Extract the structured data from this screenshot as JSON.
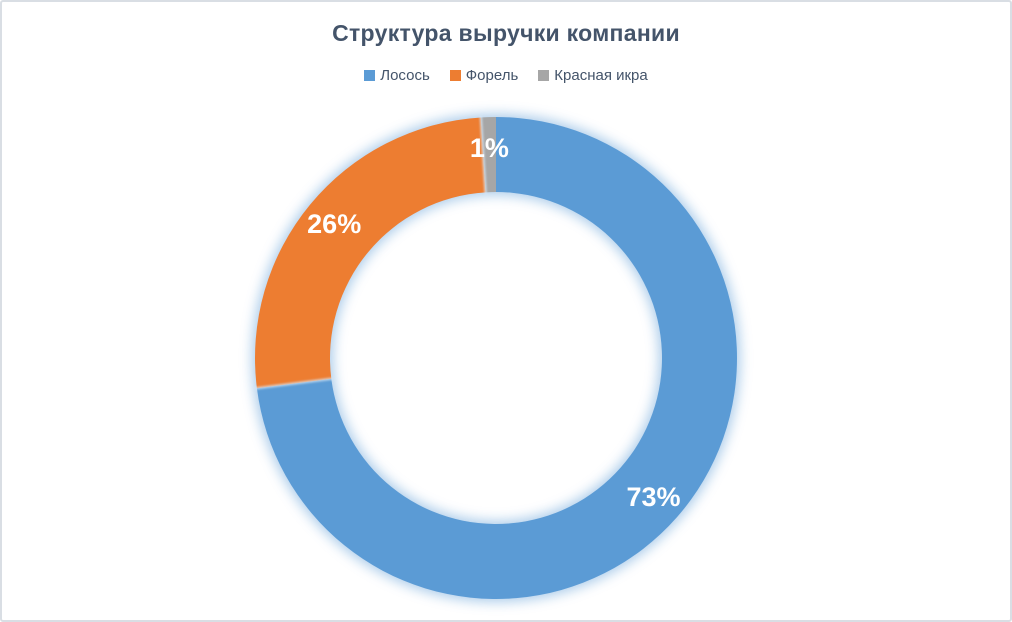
{
  "frame": {
    "background": "#FFFFFF",
    "border_color": "#D9DEE4"
  },
  "chart_data": {
    "type": "pie",
    "subtype": "doughnut",
    "title": "Структура выручки компании",
    "categories": [
      "Лосось",
      "Форель",
      "Красная икра"
    ],
    "values": [
      73,
      26,
      1
    ],
    "data_labels": [
      "73%",
      "26%",
      "1%"
    ],
    "colors": [
      "#5B9BD5",
      "#ED7D31",
      "#A6A6A6"
    ],
    "legend_position": "top",
    "direction": "clockwise",
    "start_angle_deg": 0,
    "hole_ratio": 0.69,
    "glow_color": "#9DC3E6",
    "separator_glow_color": "#D9E8F6",
    "label_color": "#FFFFFF",
    "title_color": "#44546A",
    "legend_text_color": "#44546A"
  }
}
